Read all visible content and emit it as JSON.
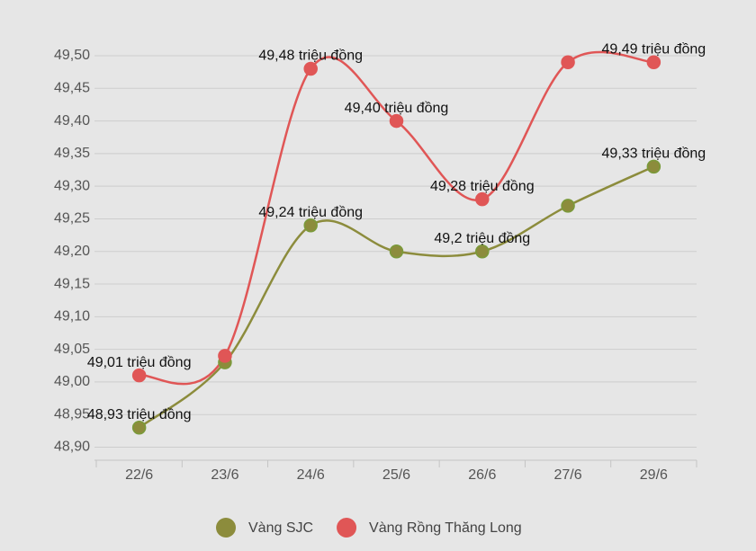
{
  "chart_data": {
    "type": "line",
    "categories": [
      "22/6",
      "23/6",
      "24/6",
      "25/6",
      "26/6",
      "27/6",
      "29/6"
    ],
    "series": [
      {
        "name": "Vàng SJC",
        "color": "#8c8c3c",
        "values": [
          48.93,
          49.03,
          49.24,
          49.2,
          49.2,
          49.27,
          49.33
        ],
        "value_labels": [
          "48,93 triệu đồng",
          null,
          "49,24 triệu đồng",
          null,
          "49,2 triệu đồng",
          null,
          "49,33 triệu đồng"
        ]
      },
      {
        "name": "Vàng Rồng Thăng Long",
        "color": "#e05656",
        "values": [
          49.01,
          49.04,
          49.48,
          49.4,
          49.28,
          49.49,
          49.49
        ],
        "value_labels": [
          "49,01 triệu đồng",
          null,
          "49,48 triệu đồng",
          "49,40 triệu đồng",
          "49,28 triệu đồng",
          null,
          "49,49 triệu đồng"
        ]
      }
    ],
    "ylim": [
      48.88,
      49.5
    ],
    "yticks": [
      {
        "value": 48.9,
        "label": "48,90"
      },
      {
        "value": 48.95,
        "label": "48,95"
      },
      {
        "value": 49.0,
        "label": "49,00"
      },
      {
        "value": 49.05,
        "label": "49,05"
      },
      {
        "value": 49.1,
        "label": "49,10"
      },
      {
        "value": 49.15,
        "label": "49,15"
      },
      {
        "value": 49.2,
        "label": "49,20"
      },
      {
        "value": 49.25,
        "label": "49,25"
      },
      {
        "value": 49.3,
        "label": "49,30"
      },
      {
        "value": 49.35,
        "label": "49,35"
      },
      {
        "value": 49.4,
        "label": "49,40"
      },
      {
        "value": 49.45,
        "label": "49,45"
      },
      {
        "value": 49.5,
        "label": "49,50"
      }
    ],
    "grid": true,
    "legend": "bottom",
    "smooth": true
  }
}
